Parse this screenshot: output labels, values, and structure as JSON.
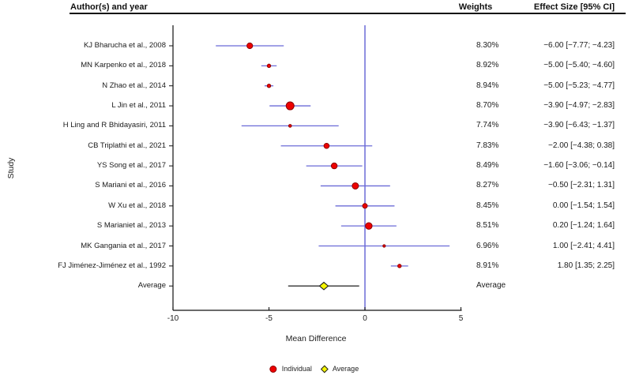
{
  "header": {
    "author_col": "Author(s) and year",
    "weights_col": "Weights",
    "effect_col": "Effect Size [95% CI]"
  },
  "colors": {
    "point_fill": "#ee0000",
    "point_stroke": "#8b0000",
    "ci_line": "#6b6bd7",
    "zero_line": "#6b6bd7",
    "average_line": "#333333",
    "diamond_fill": "#f6f600",
    "diamond_stroke": "#222222",
    "axis": "#111111",
    "text": "#1a1a1a"
  },
  "chart_data": {
    "type": "forest",
    "xlabel": "Mean Difference",
    "ylabel": "Study",
    "xlim": [
      -10,
      5
    ],
    "x_ticks": [
      -10,
      -5,
      0,
      5
    ],
    "zero_line_x": 0,
    "grid": false,
    "legend": {
      "position": "bottom-center",
      "items": [
        {
          "label": "Individual",
          "marker": "circle"
        },
        {
          "label": "Average",
          "marker": "diamond"
        }
      ]
    },
    "studies": [
      {
        "label": "KJ Bharucha et al., 2008",
        "weight": "8.30%",
        "effect": -6.0,
        "ci": [
          -7.77,
          -4.23
        ],
        "effect_label": "−6.00 [−7.77; −4.23]",
        "marker": "circle",
        "marker_size": 3.6
      },
      {
        "label": "MN Karpenko et al., 2018",
        "weight": "8.92%",
        "effect": -5.0,
        "ci": [
          -5.4,
          -4.6
        ],
        "effect_label": "−5.00 [−5.40; −4.60]",
        "marker": "circle",
        "marker_size": 2.2
      },
      {
        "label": "N Zhao et al., 2014",
        "weight": "8.94%",
        "effect": -5.0,
        "ci": [
          -5.23,
          -4.77
        ],
        "effect_label": "−5.00 [−5.23; −4.77]",
        "marker": "circle",
        "marker_size": 2.2
      },
      {
        "label": "L Jin et al., 2011",
        "weight": "8.70%",
        "effect": -3.9,
        "ci": [
          -4.97,
          -2.83
        ],
        "effect_label": "−3.90 [−4.97; −2.83]",
        "marker": "circle",
        "marker_size": 5.0
      },
      {
        "label": "H Ling and R Bhidayasiri, 2011",
        "weight": "7.74%",
        "effect": -3.9,
        "ci": [
          -6.43,
          -1.37
        ],
        "effect_label": "−3.90 [−6.43; −1.37]",
        "marker": "circle",
        "marker_size": 1.8
      },
      {
        "label": "CB Triplathi et al., 2021",
        "weight": "7.83%",
        "effect": -2.0,
        "ci": [
          -4.38,
          0.38
        ],
        "effect_label": "−2.00 [−4.38; 0.38]",
        "marker": "circle",
        "marker_size": 3.3
      },
      {
        "label": "YS Song et al., 2017",
        "weight": "8.49%",
        "effect": -1.6,
        "ci": [
          -3.06,
          -0.14
        ],
        "effect_label": "−1.60 [−3.06; −0.14]",
        "marker": "circle",
        "marker_size": 3.7
      },
      {
        "label": "S Mariani et al., 2016",
        "weight": "8.27%",
        "effect": -0.5,
        "ci": [
          -2.31,
          1.31
        ],
        "effect_label": "−0.50 [−2.31; 1.31]",
        "marker": "circle",
        "marker_size": 4.0
      },
      {
        "label": "W Xu et al., 2018",
        "weight": "8.45%",
        "effect": 0.0,
        "ci": [
          -1.54,
          1.54
        ],
        "effect_label": "0.00 [−1.54; 1.54]",
        "marker": "circle",
        "marker_size": 3.0
      },
      {
        "label": "S Marianiet al., 2013",
        "weight": "8.51%",
        "effect": 0.2,
        "ci": [
          -1.24,
          1.64
        ],
        "effect_label": "0.20 [−1.24; 1.64]",
        "marker": "circle",
        "marker_size": 4.2
      },
      {
        "label": "MK Gangania et al., 2017",
        "weight": "6.96%",
        "effect": 1.0,
        "ci": [
          -2.41,
          4.41
        ],
        "effect_label": "1.00 [−2.41; 4.41]",
        "marker": "circle",
        "marker_size": 1.6
      },
      {
        "label": "FJ Jiménez-Jiménez et al., 1992",
        "weight": "8.91%",
        "effect": 1.8,
        "ci": [
          1.35,
          2.25
        ],
        "effect_label": "1.80 [1.35; 2.25]",
        "marker": "circle",
        "marker_size": 2.2
      },
      {
        "label": "Average",
        "weight": "Average",
        "effect": -2.14,
        "ci": [
          -4.0,
          -0.3
        ],
        "effect_label": "",
        "marker": "diamond",
        "marker_size": 5.5
      }
    ]
  }
}
